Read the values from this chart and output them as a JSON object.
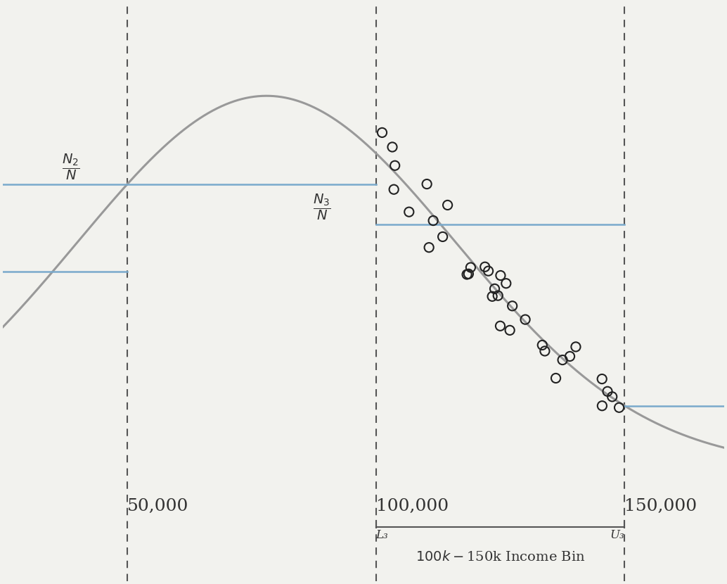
{
  "background_color": "#f2f2ee",
  "curve_color": "#999999",
  "blue_color": "#7aaacc",
  "dashed_color": "#555555",
  "scatter_color": "#222222",
  "x_range": [
    25000,
    170000
  ],
  "y_range": [
    -0.22,
    0.9
  ],
  "vlines": [
    50000,
    100000,
    150000
  ],
  "curve_peak_x": 78000,
  "curve_sigma": 38000,
  "curve_amplitude": 0.72,
  "tick_50k": "50,000",
  "tick_100k": "100,000",
  "tick_150k": "150,000",
  "bin_label": "$100k-$150k Income Bin",
  "L3_label": "L₃",
  "U3_label": "U₃",
  "scatter_seed": 7,
  "n_scatter": 35
}
